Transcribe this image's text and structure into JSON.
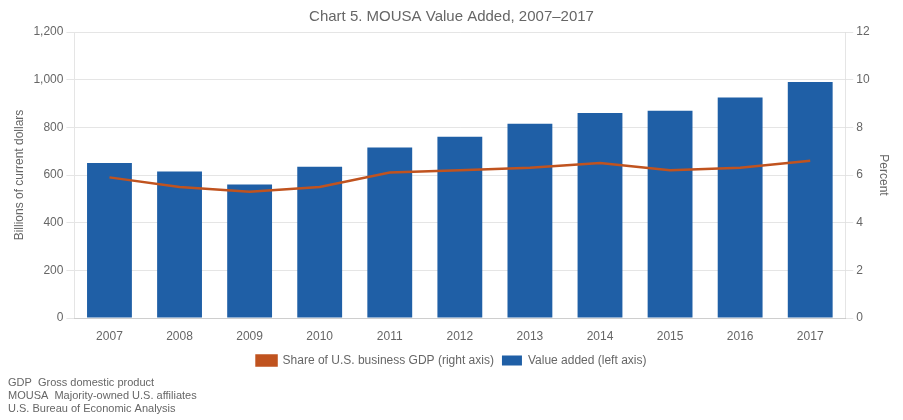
{
  "chart_data": {
    "type": "bar",
    "title": "Chart 5. MOUSA Value Added, 2007–2017",
    "categories": [
      "2007",
      "2008",
      "2009",
      "2010",
      "2011",
      "2012",
      "2013",
      "2014",
      "2015",
      "2016",
      "2017"
    ],
    "series": [
      {
        "name": "Value added (left axis)",
        "type": "bar",
        "color": "#1F5FA6",
        "values": [
          650,
          615,
          560,
          635,
          715,
          760,
          815,
          860,
          870,
          925,
          990
        ]
      },
      {
        "name": "Share of U.S. business GDP (right axis)",
        "type": "line",
        "color": "#C0531F",
        "axis": "y2",
        "values": [
          5.9,
          5.5,
          5.3,
          5.5,
          6.1,
          6.2,
          6.3,
          6.5,
          6.2,
          6.3,
          6.6
        ]
      }
    ],
    "ylabel": "Billions of current dollars",
    "y2label": "Percent",
    "ylim": [
      0,
      1200
    ],
    "yticks": [
      0,
      200,
      400,
      600,
      800,
      {
        "value": 1000,
        "label": "1,000"
      },
      {
        "value": 1200,
        "label": "1,200"
      }
    ],
    "y2lim": [
      0,
      12
    ],
    "y2ticks": [
      0,
      2,
      4,
      6,
      8,
      10,
      12
    ],
    "grid": true,
    "legend": "bottom",
    "annotations": [
      "GDP  Gross domestic product",
      "MOUSA  Majority-owned U.S. affiliates",
      "U.S. Bureau of Economic Analysis"
    ]
  }
}
